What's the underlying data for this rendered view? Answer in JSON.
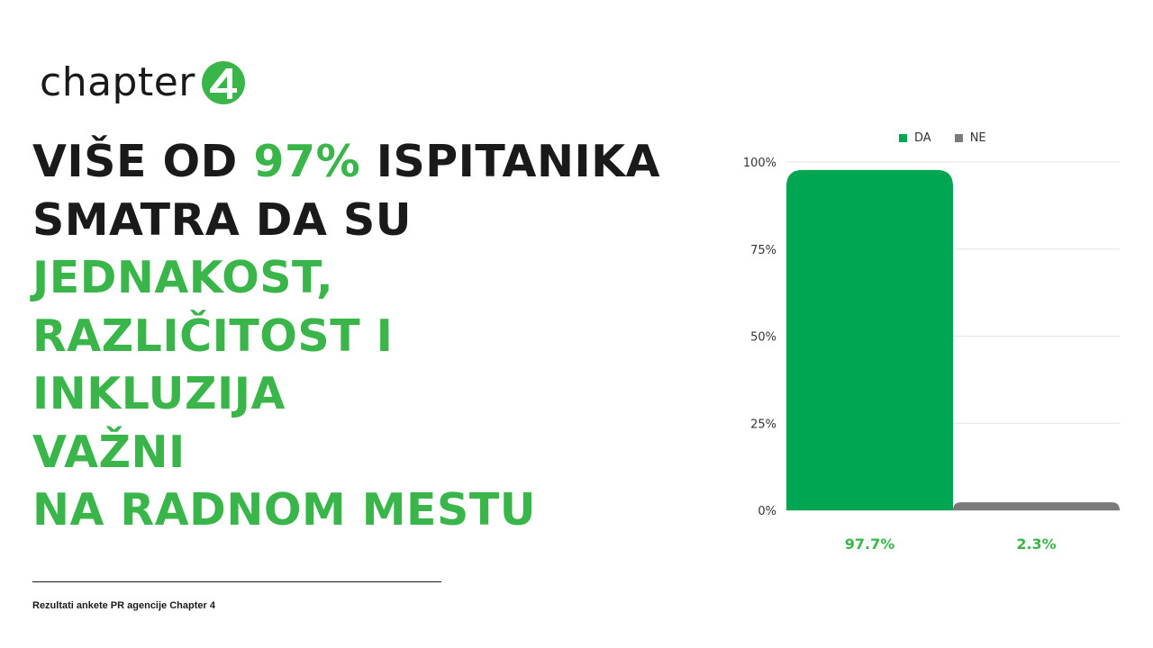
{
  "brand": {
    "name": "chapter",
    "mark": "4",
    "colors": {
      "green": "#39b54a",
      "dark": "#1a1a1a"
    }
  },
  "headline": {
    "line1_a": "VIŠE OD ",
    "line1_highlight": "97%",
    "line1_b": " ISPITANIKA",
    "line2": "SMATRA DA SU",
    "line3": "JEDNAKOST,",
    "line4": "RAZLIČITOST I",
    "line5": "INKLUZIJA",
    "line6": "VAŽNI",
    "line7": "NA RADNOM MESTU"
  },
  "footer": {
    "note": "Rezultati ankete PR agencije Chapter 4"
  },
  "chart_data": {
    "type": "bar",
    "categories": [
      "DA",
      "NE"
    ],
    "values": [
      97.7,
      2.3
    ],
    "value_labels": [
      "97.7%",
      "2.3%"
    ],
    "series": [
      {
        "name": "DA",
        "color": "#00a651"
      },
      {
        "name": "NE",
        "color": "#7a7a7a"
      }
    ],
    "ylim": [
      0,
      100
    ],
    "yticks": [
      "0%",
      "25%",
      "50%",
      "75%",
      "100%"
    ],
    "ytick_values": [
      0,
      25,
      50,
      75,
      100
    ],
    "grid": true,
    "legend_position": "top"
  }
}
